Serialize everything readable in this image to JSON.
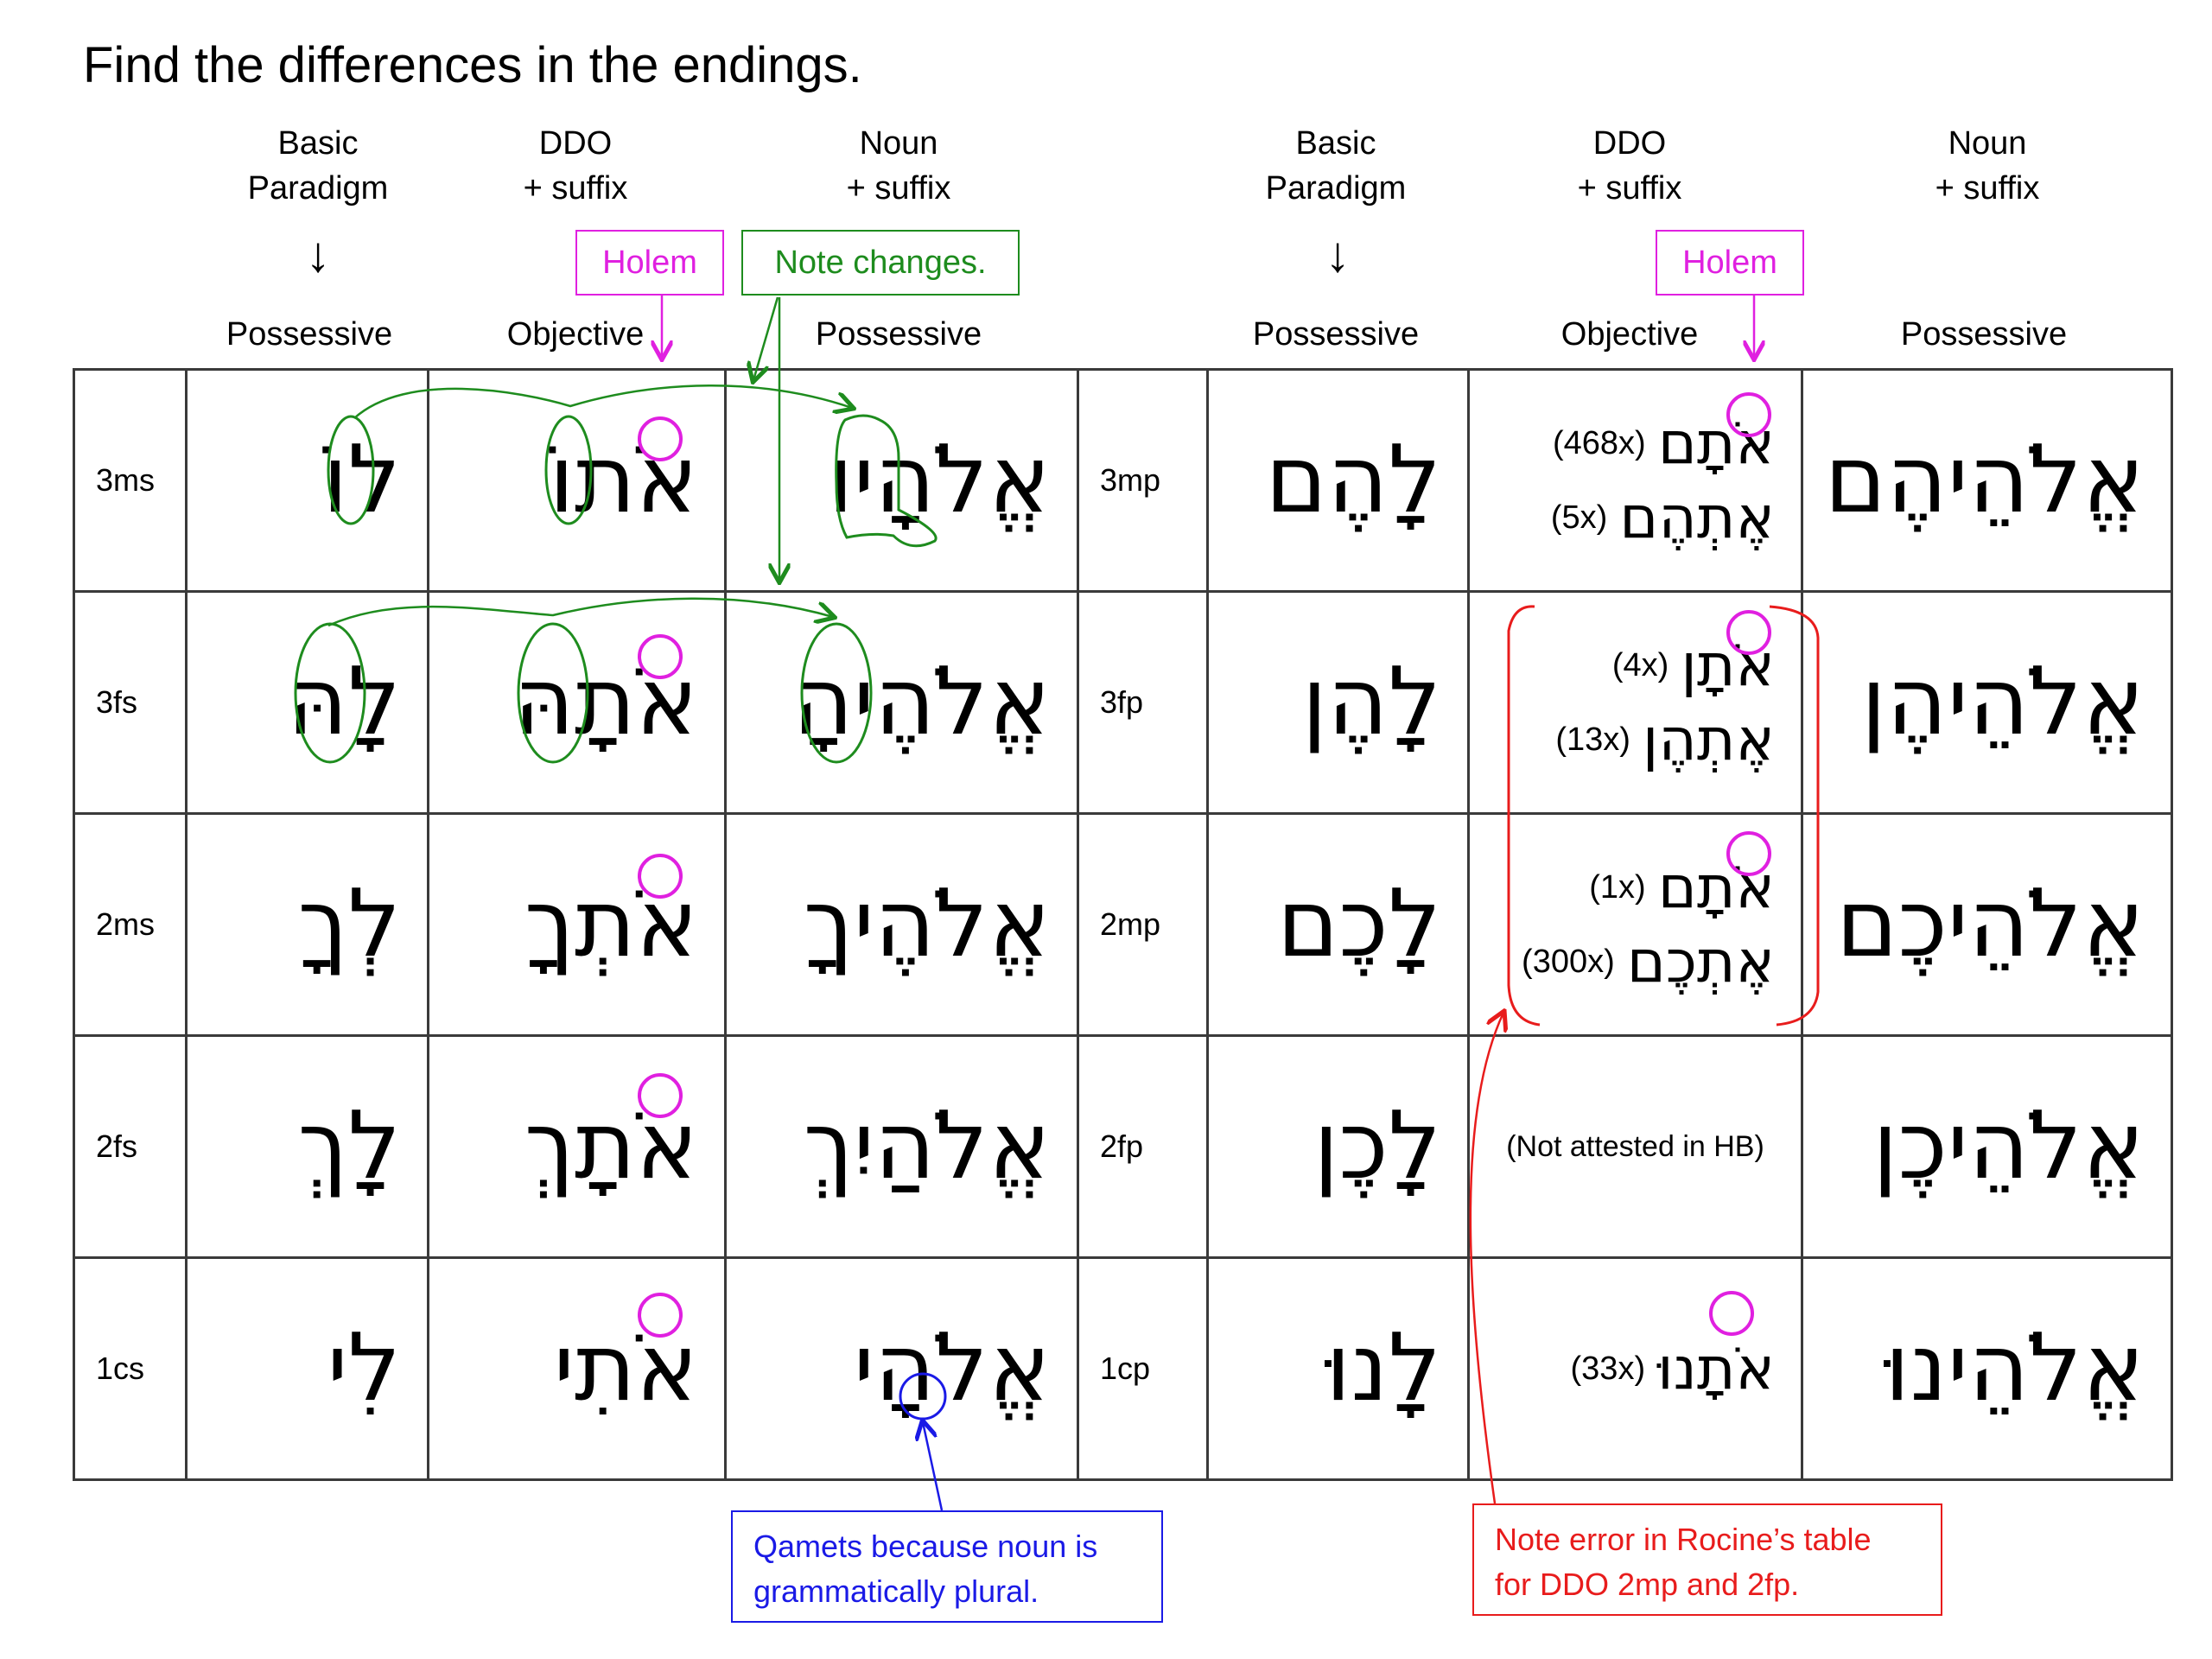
{
  "title": "Find the differences in the endings.",
  "columns": [
    {
      "line1": "Basic",
      "line2": "Paradigm",
      "subhead": "Possessive"
    },
    {
      "line1": "DDO",
      "line2": "+ suffix",
      "subhead": "Objective"
    },
    {
      "line1": "Noun",
      "line2": "+ suffix",
      "subhead": "Possessive"
    },
    {
      "line1": "Basic",
      "line2": "Paradigm",
      "subhead": "Possessive"
    },
    {
      "line1": "DDO",
      "line2": "+ suffix",
      "subhead": "Objective"
    },
    {
      "line1": "Noun",
      "line2": "+ suffix",
      "subhead": "Possessive"
    }
  ],
  "arrow_glyph": "↓",
  "callouts": {
    "holem_left": "Holem",
    "holem_right": "Holem",
    "note_changes": "Note changes.",
    "qamets_line1": "Qamets because noun is",
    "qamets_line2": "grammatically plural.",
    "error_line1": "Note error in Rocine’s table",
    "error_line2": "for DDO 2mp and 2fp."
  },
  "singular_rows": [
    {
      "label": "3ms",
      "basic": "לוֹ",
      "ddo": "אֹתוֹ",
      "noun": "אֱלֹהָיו"
    },
    {
      "label": "3fs",
      "basic": "לָהּ",
      "ddo": "אֹתָהּ",
      "noun": "אֱלֹהֶיהָ"
    },
    {
      "label": "2ms",
      "basic": "לְךָ",
      "ddo": "אֹתְךָ",
      "noun": "אֱלֹהֶיךָ"
    },
    {
      "label": "2fs",
      "basic": "לָךְ",
      "ddo": "אֹתָךְ",
      "noun": "אֱלֹהַיִךְ"
    },
    {
      "label": "1cs",
      "basic": "לִי",
      "ddo": "אֹתִי",
      "noun": "אֱלֹהָי"
    }
  ],
  "plural_rows": [
    {
      "label": "3mp",
      "basic": "לָהֶם",
      "ddo": [
        {
          "count": "(468x)",
          "form": "אֹתָם"
        },
        {
          "count": "(5x)",
          "form": "אֶתְהֶם"
        }
      ],
      "noun": "אֱלֹהֵיהֶם"
    },
    {
      "label": "3fp",
      "basic": "לָהֶן",
      "ddo": [
        {
          "count": "(4x)",
          "form": "אֹתָן"
        },
        {
          "count": "(13x)",
          "form": "אֶתְהֶן"
        }
      ],
      "noun": "אֱלֹהֵיהֶן"
    },
    {
      "label": "2mp",
      "basic": "לָכֶם",
      "ddo": [
        {
          "count": "(1x)",
          "form": "אֹתָם"
        },
        {
          "count": "(300x)",
          "form": "אֶתְכֶם"
        }
      ],
      "noun": "אֱלֹהֵיכֶם"
    },
    {
      "label": "2fp",
      "basic": "לָכֶן",
      "ddo_note": "(Not attested in HB)",
      "noun": "אֱלֹהֵיכֶן"
    },
    {
      "label": "1cp",
      "basic": "לָנוּ",
      "ddo": [
        {
          "count": "(33x)",
          "form": "אֹתָנוּ"
        }
      ],
      "noun": "אֱלֹהֵינוּ"
    }
  ],
  "colors": {
    "magenta": "#e020e0",
    "green": "#1e8c1e",
    "blue": "#1a1ae6",
    "red": "#e81c1c",
    "grid": "#3a3a3a"
  }
}
